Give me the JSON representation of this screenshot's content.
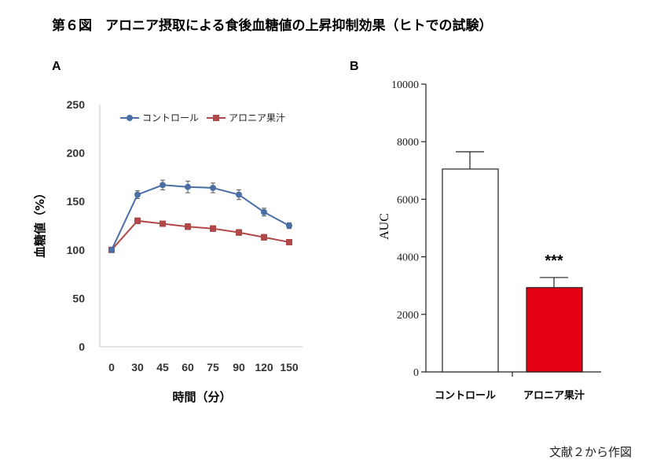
{
  "figure_title": "第６図　アロニア摂取による食後血糖値の上昇抑制効果（ヒトでの試験）",
  "source_note": "文献２から作図",
  "colors": {
    "control": "#4a6fa5",
    "aronia": "#b04848",
    "bar_control": "#ffffff",
    "bar_aronia": "#e50012"
  },
  "chart_data": [
    {
      "panel": "A",
      "type": "line",
      "xlabel": "時間（分）",
      "ylabel": "血糖値（%）",
      "x": [
        0,
        30,
        45,
        60,
        75,
        90,
        120,
        150
      ],
      "x_tick_labels": [
        "0",
        "30",
        "45",
        "60",
        "75",
        "90",
        "120",
        "150"
      ],
      "ylim": [
        0,
        250
      ],
      "y_ticks": [
        0,
        50,
        100,
        150,
        200,
        250
      ],
      "legend_position": "top",
      "series": [
        {
          "name": "コントロール",
          "marker": "circle",
          "values": [
            100,
            157,
            167,
            165,
            164,
            157,
            139,
            125
          ],
          "errors": [
            0,
            4,
            5,
            6,
            5,
            5,
            4,
            3
          ]
        },
        {
          "name": "アロニア果汁",
          "marker": "square",
          "values": [
            100,
            130,
            127,
            124,
            122,
            118,
            113,
            108
          ],
          "errors": [
            0,
            3,
            2,
            3,
            3,
            3,
            3,
            2
          ]
        }
      ]
    },
    {
      "panel": "B",
      "type": "bar",
      "ylabel": "AUC",
      "categories": [
        "コントロール",
        "アロニア果汁"
      ],
      "values": [
        7050,
        2930
      ],
      "errors": [
        600,
        350
      ],
      "ylim": [
        0,
        10000
      ],
      "y_ticks": [
        0,
        2000,
        4000,
        6000,
        8000,
        10000
      ],
      "significance": [
        "",
        "***"
      ]
    }
  ]
}
